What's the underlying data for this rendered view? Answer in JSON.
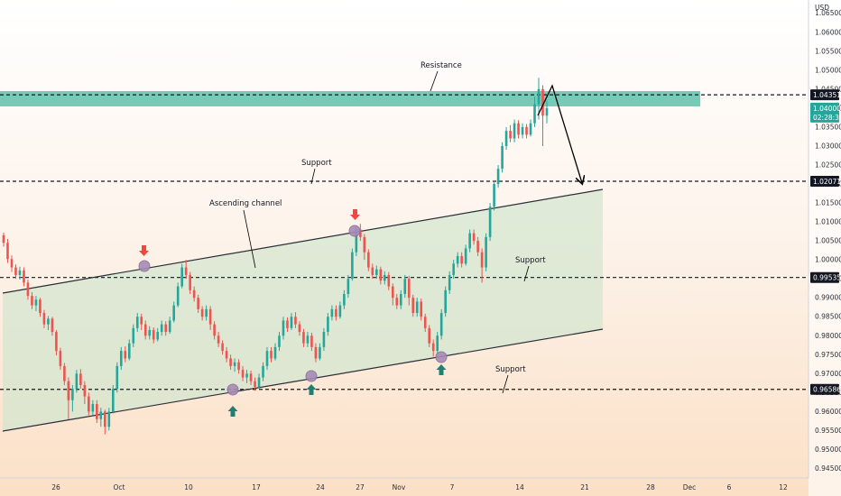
{
  "chart_data": {
    "type": "candlestick",
    "currency_label": "USD",
    "y_ticks": [
      "1.06500",
      "1.06000",
      "1.05500",
      "1.05000",
      "1.04500",
      "1.04000",
      "1.03500",
      "1.03000",
      "1.02500",
      "1.02000",
      "1.01500",
      "1.01000",
      "1.00500",
      "1.00000",
      "0.99500",
      "0.99000",
      "0.98500",
      "0.98000",
      "0.97500",
      "0.97000",
      "0.96500",
      "0.96000",
      "0.95500",
      "0.95000",
      "0.94500"
    ],
    "y_tick_values": [
      1.065,
      1.06,
      1.055,
      1.05,
      1.045,
      1.04,
      1.035,
      1.03,
      1.025,
      1.02,
      1.015,
      1.01,
      1.005,
      1.0,
      0.995,
      0.99,
      0.985,
      0.98,
      0.975,
      0.97,
      0.965,
      0.96,
      0.955,
      0.95,
      0.945
    ],
    "ylim": [
      0.9425,
      1.0685
    ],
    "x_ticks": [
      "26",
      "Oct",
      "10",
      "17",
      "24",
      "27",
      "Nov",
      "7",
      "14",
      "21",
      "28",
      "Dec",
      "6",
      "12"
    ],
    "levels": [
      {
        "name": "Resistance",
        "price": 1.04351,
        "label": "1.04351"
      },
      {
        "name": "Support",
        "price": 1.02071,
        "label": "1.02071"
      },
      {
        "name": "Support",
        "price": 0.99535,
        "label": "0.99535"
      },
      {
        "name": "Support",
        "price": 0.96586,
        "label": "0.96586"
      }
    ],
    "current_price": {
      "label": "1.04000",
      "countdown": "02:28:30"
    },
    "annotations": {
      "resistance": "Resistance",
      "support_upper": "Support",
      "support_mid": "Support",
      "support_low": "Support",
      "channel": "Ascending channel"
    },
    "candles": [
      [
        1.0065,
        1.0045,
        1.0035,
        1.0072
      ],
      [
        1.0045,
        1.0002,
        0.9992,
        1.0055
      ],
      [
        1.0002,
        0.998,
        0.9968,
        1.0012
      ],
      [
        0.998,
        0.996,
        0.995,
        0.9988
      ],
      [
        0.996,
        0.9972,
        0.9948,
        0.9982
      ],
      [
        0.9972,
        0.994,
        0.993,
        0.998
      ],
      [
        0.994,
        0.9905,
        0.9895,
        0.9948
      ],
      [
        0.9905,
        0.988,
        0.987,
        0.9915
      ],
      [
        0.988,
        0.9895,
        0.9865,
        0.9905
      ],
      [
        0.9895,
        0.986,
        0.985,
        0.99
      ],
      [
        0.986,
        0.983,
        0.982,
        0.9868
      ],
      [
        0.983,
        0.9845,
        0.9815,
        0.9852
      ],
      [
        0.9845,
        0.981,
        0.98,
        0.985
      ],
      [
        0.981,
        0.976,
        0.9748,
        0.9815
      ],
      [
        0.976,
        0.972,
        0.971,
        0.9768
      ],
      [
        0.972,
        0.968,
        0.967,
        0.9728
      ],
      [
        0.968,
        0.963,
        0.958,
        0.969
      ],
      [
        0.963,
        0.966,
        0.96,
        0.967
      ],
      [
        0.966,
        0.97,
        0.965,
        0.971
      ],
      [
        0.97,
        0.967,
        0.966,
        0.9712
      ],
      [
        0.967,
        0.964,
        0.962,
        0.968
      ],
      [
        0.964,
        0.96,
        0.959,
        0.965
      ],
      [
        0.96,
        0.962,
        0.959,
        0.963
      ],
      [
        0.962,
        0.958,
        0.957,
        0.963
      ],
      [
        0.958,
        0.96,
        0.956,
        0.961
      ],
      [
        0.96,
        0.956,
        0.954,
        0.9605
      ],
      [
        0.956,
        0.96,
        0.955,
        0.961
      ],
      [
        0.96,
        0.966,
        0.9595,
        0.967
      ],
      [
        0.966,
        0.972,
        0.965,
        0.973
      ],
      [
        0.972,
        0.976,
        0.971,
        0.977
      ],
      [
        0.976,
        0.974,
        0.973,
        0.9772
      ],
      [
        0.974,
        0.978,
        0.9735,
        0.979
      ],
      [
        0.978,
        0.982,
        0.977,
        0.983
      ],
      [
        0.982,
        0.985,
        0.981,
        0.986
      ],
      [
        0.985,
        0.983,
        0.9815,
        0.9858
      ],
      [
        0.983,
        0.98,
        0.979,
        0.984
      ],
      [
        0.98,
        0.9815,
        0.979,
        0.9825
      ],
      [
        0.9815,
        0.979,
        0.978,
        0.9822
      ],
      [
        0.979,
        0.981,
        0.9785,
        0.982
      ],
      [
        0.981,
        0.983,
        0.98,
        0.984
      ],
      [
        0.983,
        0.981,
        0.98,
        0.9838
      ],
      [
        0.981,
        0.984,
        0.9805,
        0.985
      ],
      [
        0.984,
        0.988,
        0.9835,
        0.989
      ],
      [
        0.988,
        0.993,
        0.9875,
        0.994
      ],
      [
        0.993,
        0.998,
        0.9925,
        0.999
      ],
      [
        0.998,
        0.996,
        0.995,
        1.0
      ],
      [
        0.996,
        0.992,
        0.991,
        0.9968
      ],
      [
        0.992,
        0.99,
        0.989,
        0.993
      ],
      [
        0.99,
        0.987,
        0.986,
        0.9908
      ],
      [
        0.987,
        0.985,
        0.984,
        0.9878
      ],
      [
        0.985,
        0.987,
        0.984,
        0.988
      ],
      [
        0.987,
        0.983,
        0.9815,
        0.9878
      ],
      [
        0.983,
        0.98,
        0.979,
        0.9838
      ],
      [
        0.98,
        0.978,
        0.977,
        0.981
      ],
      [
        0.978,
        0.976,
        0.975,
        0.9788
      ],
      [
        0.976,
        0.974,
        0.973,
        0.977
      ],
      [
        0.974,
        0.972,
        0.971,
        0.975
      ],
      [
        0.972,
        0.973,
        0.9705,
        0.974
      ],
      [
        0.973,
        0.971,
        0.97,
        0.9738
      ],
      [
        0.971,
        0.969,
        0.968,
        0.972
      ],
      [
        0.969,
        0.97,
        0.9675,
        0.971
      ],
      [
        0.97,
        0.968,
        0.967,
        0.9708
      ],
      [
        0.968,
        0.9665,
        0.9655,
        0.969
      ],
      [
        0.9665,
        0.969,
        0.966,
        0.97
      ],
      [
        0.969,
        0.972,
        0.968,
        0.973
      ],
      [
        0.972,
        0.976,
        0.971,
        0.977
      ],
      [
        0.976,
        0.974,
        0.973,
        0.977
      ],
      [
        0.974,
        0.977,
        0.9735,
        0.978
      ],
      [
        0.977,
        0.98,
        0.976,
        0.981
      ],
      [
        0.98,
        0.984,
        0.979,
        0.985
      ],
      [
        0.984,
        0.982,
        0.981,
        0.9848
      ],
      [
        0.982,
        0.985,
        0.9815,
        0.986
      ],
      [
        0.985,
        0.983,
        0.982,
        0.9862
      ],
      [
        0.983,
        0.981,
        0.98,
        0.9838
      ],
      [
        0.981,
        0.978,
        0.977,
        0.9818
      ],
      [
        0.978,
        0.98,
        0.977,
        0.981
      ],
      [
        0.98,
        0.977,
        0.976,
        0.9808
      ],
      [
        0.977,
        0.974,
        0.973,
        0.978
      ],
      [
        0.974,
        0.977,
        0.9735,
        0.978
      ],
      [
        0.977,
        0.981,
        0.976,
        0.982
      ],
      [
        0.981,
        0.985,
        0.98,
        0.986
      ],
      [
        0.985,
        0.987,
        0.984,
        0.988
      ],
      [
        0.987,
        0.985,
        0.984,
        0.988
      ],
      [
        0.985,
        0.988,
        0.9845,
        0.989
      ],
      [
        0.988,
        0.991,
        0.987,
        0.992
      ],
      [
        0.991,
        0.995,
        0.99,
        0.996
      ],
      [
        0.995,
        1.002,
        0.9945,
        1.003
      ],
      [
        1.002,
        1.008,
        1.001,
        1.009
      ],
      [
        1.008,
        1.006,
        1.005,
        1.0095
      ],
      [
        1.006,
        1.002,
        1.0,
        1.0068
      ],
      [
        1.002,
        0.998,
        0.997,
        1.0028
      ],
      [
        0.998,
        0.996,
        0.995,
        0.999
      ],
      [
        0.996,
        0.9975,
        0.995,
        0.9985
      ],
      [
        0.9975,
        0.9945,
        0.9935,
        0.9982
      ],
      [
        0.9945,
        0.996,
        0.9935,
        0.997
      ],
      [
        0.996,
        0.993,
        0.992,
        0.9968
      ],
      [
        0.993,
        0.99,
        0.988,
        0.9938
      ],
      [
        0.99,
        0.988,
        0.987,
        0.991
      ],
      [
        0.988,
        0.991,
        0.987,
        0.992
      ],
      [
        0.991,
        0.995,
        0.99,
        0.996
      ],
      [
        0.995,
        0.99,
        0.988,
        0.9958
      ],
      [
        0.99,
        0.986,
        0.985,
        0.9908
      ],
      [
        0.986,
        0.989,
        0.985,
        0.99
      ],
      [
        0.989,
        0.985,
        0.984,
        0.9898
      ],
      [
        0.985,
        0.982,
        0.981,
        0.9858
      ],
      [
        0.982,
        0.978,
        0.977,
        0.9828
      ],
      [
        0.978,
        0.976,
        0.9745,
        0.979
      ],
      [
        0.976,
        0.98,
        0.975,
        0.981
      ],
      [
        0.98,
        0.986,
        0.979,
        0.987
      ],
      [
        0.986,
        0.992,
        0.985,
        0.993
      ],
      [
        0.992,
        0.996,
        0.991,
        0.997
      ],
      [
        0.996,
        0.999,
        0.995,
        1.0
      ],
      [
        0.999,
        1.001,
        0.998,
        1.002
      ],
      [
        1.001,
        0.999,
        0.998,
        1.002
      ],
      [
        0.999,
        1.003,
        0.9985,
        1.004
      ],
      [
        1.003,
        1.007,
        1.002,
        1.008
      ],
      [
        1.007,
        1.005,
        1.004,
        1.008
      ],
      [
        1.005,
        1.002,
        1.001,
        1.006
      ],
      [
        1.002,
        0.998,
        0.994,
        1.003
      ],
      [
        0.998,
        1.006,
        0.997,
        1.007
      ],
      [
        1.006,
        1.014,
        1.005,
        1.015
      ],
      [
        1.014,
        1.02,
        1.013,
        1.021
      ],
      [
        1.02,
        1.024,
        1.019,
        1.025
      ],
      [
        1.024,
        1.03,
        1.023,
        1.031
      ],
      [
        1.03,
        1.034,
        1.029,
        1.035
      ],
      [
        1.034,
        1.032,
        1.031,
        1.0355
      ],
      [
        1.032,
        1.036,
        1.031,
        1.037
      ],
      [
        1.036,
        1.033,
        1.032,
        1.0368
      ],
      [
        1.033,
        1.035,
        1.032,
        1.036
      ],
      [
        1.035,
        1.033,
        1.032,
        1.0358
      ],
      [
        1.033,
        1.036,
        1.0325,
        1.037
      ],
      [
        1.036,
        1.041,
        1.035,
        1.043
      ],
      [
        1.041,
        1.045,
        1.037,
        1.048
      ],
      [
        1.045,
        1.038,
        1.03,
        1.046
      ],
      [
        1.038,
        1.04,
        1.036,
        1.042
      ]
    ]
  }
}
